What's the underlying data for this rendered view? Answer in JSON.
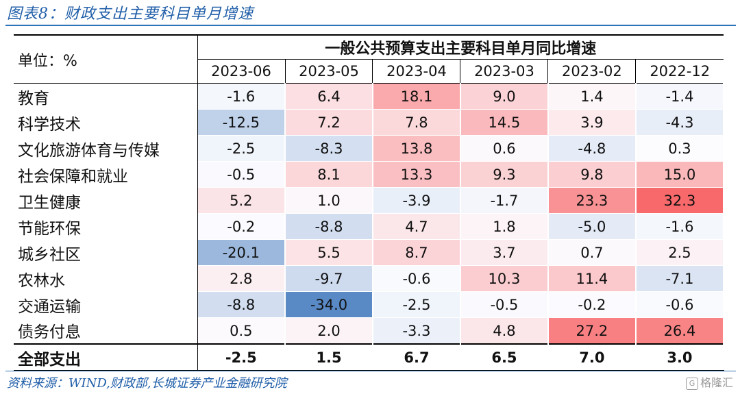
{
  "figure": {
    "title": "图表8：财政支出主要科目单月增速",
    "source": "资料来源：WIND,财政部,长城证券产业金融研究院",
    "watermark": "格隆汇",
    "watermark_icon": "G"
  },
  "table": {
    "unit_label": "单位：%",
    "group_header": "一般公共预算支出主要科目单月同比增速",
    "periods": [
      "2023-06",
      "2023-05",
      "2023-04",
      "2023-03",
      "2023-02",
      "2022-12"
    ],
    "rows": [
      {
        "label": "教育",
        "values": [
          "-1.6",
          "6.4",
          "18.1",
          "9.0",
          "1.4",
          "-1.4"
        ]
      },
      {
        "label": "科学技术",
        "values": [
          "-12.5",
          "7.2",
          "7.8",
          "14.5",
          "3.9",
          "-4.3"
        ]
      },
      {
        "label": "文化旅游体育与传媒",
        "values": [
          "-2.5",
          "-8.3",
          "13.8",
          "0.6",
          "-4.8",
          "0.3"
        ]
      },
      {
        "label": "社会保障和就业",
        "values": [
          "-0.5",
          "8.1",
          "13.3",
          "9.3",
          "9.8",
          "15.0"
        ]
      },
      {
        "label": "卫生健康",
        "values": [
          "5.2",
          "1.0",
          "-3.9",
          "-1.7",
          "23.3",
          "32.3"
        ]
      },
      {
        "label": "节能环保",
        "values": [
          "-0.2",
          "-8.8",
          "4.7",
          "1.8",
          "-5.0",
          "-1.6"
        ]
      },
      {
        "label": "城乡社区",
        "values": [
          "-20.1",
          "5.5",
          "8.7",
          "3.7",
          "0.7",
          "2.5"
        ]
      },
      {
        "label": "农林水",
        "values": [
          "2.8",
          "-9.7",
          "-0.6",
          "10.3",
          "11.4",
          "-7.1"
        ]
      },
      {
        "label": "交通运输",
        "values": [
          "-8.8",
          "-34.0",
          "-2.5",
          "-0.5",
          "-0.2",
          "-0.6"
        ]
      },
      {
        "label": "债务付息",
        "values": [
          "0.5",
          "2.0",
          "-3.3",
          "4.8",
          "27.2",
          "26.4"
        ]
      }
    ],
    "total": {
      "label": "全部支出",
      "values": [
        "-2.5",
        "1.5",
        "6.7",
        "6.5",
        "7.0",
        "3.0"
      ]
    },
    "colors": {
      "positive_max": "#f8696b",
      "negative_max": "#5a8ac6",
      "neutral": "#fcfcff"
    }
  }
}
